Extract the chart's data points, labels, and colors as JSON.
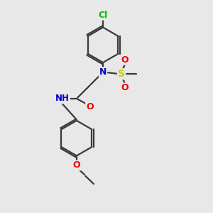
{
  "background_color": "#e8e8e8",
  "bond_color": "#3a3a3a",
  "bond_width": 1.6,
  "atom_colors": {
    "N": "#0000cc",
    "O": "#ee0000",
    "S": "#cccc00",
    "Cl": "#00bb00",
    "C": "#3a3a3a",
    "H": "#666666"
  },
  "figsize": [
    3.0,
    3.0
  ],
  "dpi": 100
}
